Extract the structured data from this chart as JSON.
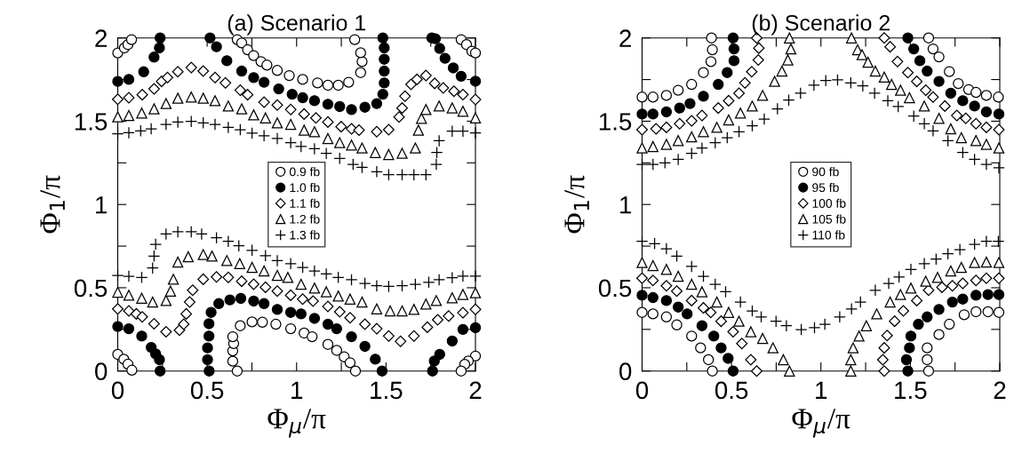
{
  "chart_data": [
    {
      "type": "scatter",
      "title": "(a) Scenario 1",
      "xlabel": "Φ$_{μ}$/π",
      "ylabel": "Φ$_{1}$/π",
      "xlim": [
        0,
        2
      ],
      "ylim": [
        0,
        2
      ],
      "xticks": [
        0,
        {
          "value": 0.25,
          "label": null
        },
        0.5,
        {
          "value": 0.75,
          "label": null
        },
        1,
        {
          "value": 1.25,
          "label": null
        },
        1.5,
        {
          "value": 1.75,
          "label": null
        },
        2
      ],
      "yticks": [
        0,
        {
          "value": 0.25,
          "label": null
        },
        0.5,
        {
          "value": 0.75,
          "label": null
        },
        1,
        {
          "value": 1.25,
          "label": null
        },
        1.5,
        {
          "value": 1.75,
          "label": null
        },
        2
      ],
      "grid": false,
      "legend": "center",
      "series": [
        {
          "name": "0.9 fb",
          "color": "#ffffff",
          "marker": "circle",
          "x": [
            0.0,
            0.037,
            0.057,
            0.077,
            0.668,
            0.693,
            0.726,
            0.76,
            0.801,
            0.834,
            0.892,
            0.959,
            1.034,
            1.117,
            1.175,
            1.233,
            1.291,
            1.358,
            1.366,
            1.358,
            1.325,
            1.92,
            1.95,
            1.98,
            2.0,
            0.0,
            0.034,
            0.057,
            0.079,
            0.668,
            0.643,
            0.643,
            0.648,
            0.643,
            0.685,
            0.751,
            0.809,
            0.884,
            0.967,
            1.042,
            1.087,
            1.175,
            1.224,
            1.266,
            1.299,
            1.329,
            2.0,
            1.96,
            1.94,
            1.92
          ],
          "values": [
            1.91,
            1.94,
            1.96,
            1.99,
            1.99,
            1.97,
            1.929,
            1.894,
            1.858,
            1.837,
            1.805,
            1.774,
            1.751,
            1.73,
            1.716,
            1.716,
            1.734,
            1.792,
            1.858,
            1.911,
            1.99,
            1.99,
            1.96,
            1.92,
            1.91,
            0.1,
            0.071,
            0.041,
            0.005,
            0.0,
            0.059,
            0.121,
            0.165,
            0.206,
            0.272,
            0.295,
            0.293,
            0.281,
            0.254,
            0.228,
            0.206,
            0.16,
            0.124,
            0.085,
            0.05,
            0.0,
            0.09,
            0.06,
            0.04,
            0.0
          ]
        },
        {
          "name": "1.0 fb",
          "color": "#000000",
          "marker": "circle",
          "x": [
            0.0,
            0.062,
            0.145,
            0.203,
            0.233,
            0.237,
            0.516,
            0.552,
            0.61,
            0.693,
            0.76,
            0.818,
            0.9,
            0.975,
            1.034,
            1.1,
            1.175,
            1.241,
            1.307,
            1.382,
            1.448,
            1.482,
            1.49,
            1.49,
            1.49,
            1.49,
            1.482,
            1.756,
            1.776,
            1.8,
            1.83,
            1.876,
            1.92,
            2.0,
            0.0,
            0.062,
            0.134,
            0.187,
            0.212,
            0.233,
            0.237,
            0.511,
            0.502,
            0.502,
            0.51,
            0.51,
            0.522,
            0.565,
            0.627,
            0.688,
            0.76,
            0.818,
            0.892,
            0.967,
            1.025,
            1.1,
            1.175,
            1.224,
            1.307,
            1.382,
            1.44,
            1.478,
            1.76,
            1.77,
            1.8,
            1.87,
            1.93,
            2.0
          ],
          "values": [
            1.739,
            1.751,
            1.797,
            1.885,
            1.94,
            2.0,
            2.0,
            1.947,
            1.863,
            1.801,
            1.762,
            1.734,
            1.694,
            1.662,
            1.641,
            1.623,
            1.602,
            1.588,
            1.57,
            1.584,
            1.606,
            1.662,
            1.73,
            1.801,
            1.872,
            1.94,
            2.0,
            2.0,
            1.995,
            1.937,
            1.878,
            1.82,
            1.77,
            1.74,
            0.267,
            0.254,
            0.21,
            0.142,
            0.103,
            0.068,
            0.0,
            0.0,
            0.068,
            0.139,
            0.21,
            0.284,
            0.352,
            0.405,
            0.427,
            0.436,
            0.42,
            0.405,
            0.37,
            0.352,
            0.343,
            0.316,
            0.281,
            0.254,
            0.206,
            0.148,
            0.071,
            0.0,
            0.0,
            0.06,
            0.1,
            0.18,
            0.25,
            0.26
          ]
        },
        {
          "name": "1.1 fb",
          "color": "#ffffff",
          "marker": "diamond",
          "x": [
            0.0,
            0.062,
            0.137,
            0.203,
            0.245,
            0.278,
            0.336,
            0.411,
            0.478,
            0.544,
            0.602,
            0.685,
            0.726,
            0.818,
            0.892,
            0.967,
            1.042,
            1.108,
            1.175,
            1.249,
            1.307,
            1.349,
            1.448,
            1.515,
            1.573,
            1.59,
            1.606,
            1.64,
            1.673,
            1.723,
            1.772,
            1.82,
            1.88,
            1.93,
            2.0,
            0.0,
            0.062,
            0.104,
            0.137,
            0.203,
            0.27,
            0.345,
            0.369,
            0.383,
            0.402,
            0.419,
            0.478,
            0.552,
            0.618,
            0.693,
            0.76,
            0.826,
            0.892,
            0.967,
            1.034,
            1.092,
            1.175,
            1.241,
            1.299,
            1.382,
            1.448,
            1.515,
            1.581,
            1.656,
            1.731,
            1.789,
            1.85,
            1.93,
            2.0
          ],
          "values": [
            1.632,
            1.641,
            1.659,
            1.694,
            1.739,
            1.762,
            1.797,
            1.822,
            1.801,
            1.762,
            1.73,
            1.686,
            1.659,
            1.614,
            1.597,
            1.57,
            1.543,
            1.52,
            1.495,
            1.467,
            1.454,
            1.446,
            1.437,
            1.449,
            1.525,
            1.579,
            1.65,
            1.721,
            1.751,
            1.774,
            1.727,
            1.7,
            1.68,
            1.66,
            1.63,
            0.373,
            0.361,
            0.343,
            0.325,
            0.284,
            0.236,
            0.245,
            0.281,
            0.343,
            0.414,
            0.485,
            0.551,
            0.565,
            0.562,
            0.539,
            0.521,
            0.503,
            0.48,
            0.455,
            0.432,
            0.42,
            0.388,
            0.356,
            0.32,
            0.281,
            0.254,
            0.21,
            0.178,
            0.21,
            0.263,
            0.308,
            0.33,
            0.35,
            0.37
          ]
        },
        {
          "name": "1.2 fb",
          "color": "#ffffff",
          "marker": "triangle",
          "x": [
            0.0,
            0.062,
            0.134,
            0.203,
            0.27,
            0.336,
            0.411,
            0.478,
            0.544,
            0.618,
            0.693,
            0.76,
            0.826,
            0.892,
            0.967,
            1.042,
            1.1,
            1.175,
            1.241,
            1.307,
            1.366,
            1.44,
            1.515,
            1.59,
            1.664,
            1.681,
            1.698,
            1.723,
            1.797,
            1.87,
            1.93,
            2.0,
            0.0,
            0.062,
            0.134,
            0.195,
            0.27,
            0.295,
            0.311,
            0.336,
            0.394,
            0.478,
            0.527,
            0.61,
            0.682,
            0.751,
            0.818,
            0.892,
            0.951,
            1.025,
            1.1,
            1.166,
            1.233,
            1.299,
            1.366,
            1.448,
            1.523,
            1.59,
            1.656,
            1.723,
            1.781,
            1.87,
            1.93,
            2.0
          ],
          "values": [
            1.526,
            1.534,
            1.549,
            1.574,
            1.606,
            1.638,
            1.645,
            1.638,
            1.623,
            1.591,
            1.574,
            1.538,
            1.52,
            1.49,
            1.481,
            1.446,
            1.437,
            1.396,
            1.371,
            1.357,
            1.339,
            1.312,
            1.3,
            1.307,
            1.339,
            1.446,
            1.517,
            1.57,
            1.591,
            1.58,
            1.56,
            1.52,
            0.473,
            0.455,
            0.437,
            0.414,
            0.423,
            0.48,
            0.551,
            0.654,
            0.686,
            0.699,
            0.69,
            0.663,
            0.645,
            0.622,
            0.601,
            0.574,
            0.562,
            0.521,
            0.498,
            0.476,
            0.45,
            0.432,
            0.414,
            0.373,
            0.361,
            0.361,
            0.37,
            0.402,
            0.423,
            0.44,
            0.46,
            0.47
          ]
        },
        {
          "name": "1.3 fb",
          "color": "#000000",
          "marker": "cross",
          "x": [
            0.0,
            0.062,
            0.128,
            0.187,
            0.27,
            0.336,
            0.411,
            0.478,
            0.544,
            0.618,
            0.685,
            0.751,
            0.818,
            0.892,
            0.967,
            1.025,
            1.1,
            1.166,
            1.241,
            1.316,
            1.366,
            1.448,
            1.515,
            1.59,
            1.656,
            1.723,
            1.781,
            1.784,
            1.797,
            1.87,
            1.93,
            2.0,
            0.0,
            0.062,
            0.134,
            0.195,
            0.203,
            0.212,
            0.27,
            0.336,
            0.411,
            0.469,
            0.552,
            0.618,
            0.677,
            0.751,
            0.826,
            0.892,
            0.967,
            1.034,
            1.1,
            1.166,
            1.233,
            1.307,
            1.382,
            1.448,
            1.515,
            1.59,
            1.664,
            1.739,
            1.797,
            1.87,
            1.93,
            2.0
          ],
          "values": [
            1.424,
            1.431,
            1.442,
            1.454,
            1.481,
            1.495,
            1.499,
            1.49,
            1.481,
            1.463,
            1.449,
            1.428,
            1.413,
            1.396,
            1.371,
            1.348,
            1.335,
            1.307,
            1.277,
            1.241,
            1.223,
            1.197,
            1.179,
            1.179,
            1.179,
            1.179,
            1.241,
            1.312,
            1.383,
            1.44,
            1.44,
            1.43,
            0.574,
            0.569,
            0.562,
            0.619,
            0.69,
            0.761,
            0.823,
            0.836,
            0.836,
            0.823,
            0.8,
            0.779,
            0.752,
            0.725,
            0.693,
            0.663,
            0.645,
            0.622,
            0.601,
            0.583,
            0.562,
            0.548,
            0.526,
            0.512,
            0.508,
            0.512,
            0.521,
            0.533,
            0.548,
            0.56,
            0.57,
            0.57
          ]
        }
      ]
    },
    {
      "type": "scatter",
      "title": "(b) Scenario 2",
      "xlabel": "Φ$_{μ}$/π",
      "ylabel": "Φ$_{1}$/π",
      "xlim": [
        0,
        2
      ],
      "ylim": [
        0,
        2
      ],
      "xticks": [
        0,
        {
          "value": 0.25,
          "label": null
        },
        0.5,
        {
          "value": 0.75,
          "label": null
        },
        1,
        {
          "value": 1.25,
          "label": null
        },
        1.5,
        {
          "value": 1.75,
          "label": null
        },
        2
      ],
      "yticks": [
        0,
        {
          "value": 0.25,
          "label": null
        },
        0.5,
        {
          "value": 0.75,
          "label": null
        },
        1,
        {
          "value": 1.25,
          "label": null
        },
        1.5,
        {
          "value": 1.75,
          "label": null
        },
        2
      ],
      "grid": false,
      "legend": "center",
      "series": [
        {
          "name": "90 fb",
          "color": "#ffffff",
          "marker": "circle",
          "x": [
            0.0,
            0.061,
            0.136,
            0.202,
            0.277,
            0.343,
            0.385,
            0.393,
            0.388,
            1.602,
            1.627,
            1.66,
            1.718,
            1.768,
            1.826,
            1.867,
            1.925,
            1.992,
            0.0,
            0.061,
            0.136,
            0.194,
            0.277,
            0.327,
            0.371,
            0.393,
            1.602,
            1.594,
            1.594,
            1.66,
            1.718,
            1.801,
            1.867,
            1.934,
            1.995
          ],
          "values": [
            1.645,
            1.645,
            1.655,
            1.686,
            1.721,
            1.792,
            1.858,
            1.929,
            2.0,
            2.0,
            1.934,
            1.886,
            1.798,
            1.726,
            1.69,
            1.673,
            1.655,
            1.645,
            0.352,
            0.343,
            0.325,
            0.277,
            0.21,
            0.139,
            0.068,
            0.0,
            0.0,
            0.068,
            0.139,
            0.219,
            0.281,
            0.338,
            0.356,
            0.356,
            0.352
          ]
        },
        {
          "name": "95 fb",
          "color": "#000000",
          "marker": "circle",
          "x": [
            0.0,
            0.061,
            0.136,
            0.21,
            0.268,
            0.343,
            0.426,
            0.476,
            0.514,
            0.514,
            0.509,
            1.486,
            1.519,
            1.553,
            1.594,
            1.66,
            1.726,
            1.793,
            1.859,
            1.925,
            1.995,
            0.0,
            0.061,
            0.136,
            0.202,
            0.252,
            0.335,
            0.401,
            0.442,
            0.481,
            0.509,
            1.486,
            1.478,
            1.495,
            1.503,
            1.545,
            1.594,
            1.66,
            1.735,
            1.793,
            1.867,
            1.934,
            1.995
          ],
          "values": [
            1.543,
            1.543,
            1.556,
            1.579,
            1.606,
            1.65,
            1.721,
            1.792,
            1.863,
            1.934,
            2.0,
            2.0,
            1.934,
            1.863,
            1.801,
            1.739,
            1.668,
            1.623,
            1.591,
            1.556,
            1.543,
            0.455,
            0.441,
            0.423,
            0.384,
            0.343,
            0.272,
            0.21,
            0.139,
            0.076,
            0.0,
            0.0,
            0.068,
            0.139,
            0.21,
            0.281,
            0.325,
            0.37,
            0.414,
            0.432,
            0.455,
            0.459,
            0.459
          ]
        },
        {
          "name": "100 fb",
          "color": "#ffffff",
          "marker": "diamond",
          "x": [
            0.0,
            0.078,
            0.136,
            0.21,
            0.277,
            0.335,
            0.426,
            0.484,
            0.542,
            0.575,
            0.613,
            0.65,
            0.653,
            0.641,
            1.354,
            1.387,
            1.428,
            1.486,
            1.536,
            1.586,
            1.627,
            1.693,
            1.76,
            1.81,
            1.867,
            1.925,
            1.995,
            0.0,
            0.061,
            0.136,
            0.194,
            0.277,
            0.343,
            0.384,
            0.442,
            0.509,
            0.558,
            0.608,
            0.641,
            1.354,
            1.346,
            1.354,
            1.37,
            1.412,
            1.461,
            1.536,
            1.602,
            1.677,
            1.735,
            1.793,
            1.867,
            1.925,
            1.995
          ],
          "values": [
            1.449,
            1.454,
            1.463,
            1.485,
            1.502,
            1.534,
            1.579,
            1.623,
            1.668,
            1.73,
            1.797,
            1.868,
            1.939,
            2.0,
            2.0,
            1.947,
            1.858,
            1.792,
            1.739,
            1.686,
            1.645,
            1.591,
            1.534,
            1.517,
            1.485,
            1.463,
            1.449,
            0.557,
            0.544,
            0.512,
            0.48,
            0.423,
            0.379,
            0.352,
            0.299,
            0.236,
            0.165,
            0.068,
            0.0,
            0.0,
            0.068,
            0.139,
            0.213,
            0.299,
            0.361,
            0.423,
            0.485,
            0.503,
            0.512,
            0.526,
            0.544,
            0.557,
            0.557
          ]
        },
        {
          "name": "105 fb",
          "color": "#ffffff",
          "marker": "triangle",
          "x": [
            0.0,
            0.061,
            0.136,
            0.202,
            0.277,
            0.343,
            0.418,
            0.484,
            0.55,
            0.616,
            0.674,
            0.741,
            0.782,
            0.815,
            0.832,
            0.824,
            1.171,
            1.205,
            1.23,
            1.263,
            1.304,
            1.354,
            1.395,
            1.445,
            1.495,
            1.578,
            1.66,
            1.726,
            1.785,
            1.867,
            1.925,
            1.995,
            0.0,
            0.061,
            0.136,
            0.202,
            0.277,
            0.335,
            0.418,
            0.484,
            0.542,
            0.608,
            0.674,
            0.732,
            0.79,
            0.824,
            1.167,
            1.167,
            1.18,
            1.213,
            1.254,
            1.312,
            1.387,
            1.445,
            1.503,
            1.586,
            1.652,
            1.726,
            1.785,
            1.859,
            1.925,
            1.995
          ],
          "values": [
            1.339,
            1.348,
            1.361,
            1.384,
            1.406,
            1.437,
            1.463,
            1.508,
            1.549,
            1.591,
            1.655,
            1.739,
            1.801,
            1.868,
            1.934,
            2.0,
            2.0,
            1.929,
            1.899,
            1.854,
            1.801,
            1.765,
            1.721,
            1.686,
            1.641,
            1.591,
            1.517,
            1.454,
            1.401,
            1.384,
            1.361,
            1.339,
            0.651,
            0.633,
            0.61,
            0.569,
            0.521,
            0.476,
            0.414,
            0.352,
            0.299,
            0.236,
            0.196,
            0.139,
            0.068,
            0.0,
            0.0,
            0.068,
            0.139,
            0.21,
            0.272,
            0.343,
            0.414,
            0.459,
            0.498,
            0.539,
            0.562,
            0.601,
            0.622,
            0.651,
            0.654,
            0.651
          ]
        },
        {
          "name": "110 fb",
          "color": "#000000",
          "marker": "cross",
          "x": [
            0.0,
            0.061,
            0.128,
            0.202,
            0.277,
            0.335,
            0.409,
            0.476,
            0.542,
            0.616,
            0.683,
            0.757,
            0.82,
            0.886,
            0.961,
            1.027,
            1.093,
            1.167,
            1.234,
            1.3,
            1.374,
            1.432,
            1.519,
            1.578,
            1.627,
            1.71,
            1.793,
            1.859,
            1.925,
            1.995,
            0.0,
            0.07,
            0.136,
            0.194,
            0.277,
            0.343,
            0.409,
            0.467,
            0.55,
            0.616,
            0.666,
            0.749,
            0.807,
            0.89,
            0.964,
            1.022,
            1.105,
            1.171,
            1.221,
            1.304,
            1.379,
            1.437,
            1.503,
            1.578,
            1.644,
            1.71,
            1.777,
            1.859,
            1.925,
            1.992
          ],
          "values": [
            1.241,
            1.241,
            1.25,
            1.271,
            1.307,
            1.339,
            1.371,
            1.401,
            1.437,
            1.472,
            1.513,
            1.574,
            1.627,
            1.668,
            1.716,
            1.744,
            1.748,
            1.73,
            1.712,
            1.668,
            1.623,
            1.588,
            1.531,
            1.485,
            1.442,
            1.383,
            1.312,
            1.271,
            1.241,
            1.22,
            0.779,
            0.765,
            0.734,
            0.69,
            0.628,
            0.569,
            0.521,
            0.476,
            0.414,
            0.361,
            0.325,
            0.299,
            0.272,
            0.249,
            0.26,
            0.281,
            0.325,
            0.373,
            0.414,
            0.485,
            0.526,
            0.565,
            0.61,
            0.645,
            0.672,
            0.704,
            0.729,
            0.761,
            0.779,
            0.779
          ]
        }
      ]
    }
  ]
}
